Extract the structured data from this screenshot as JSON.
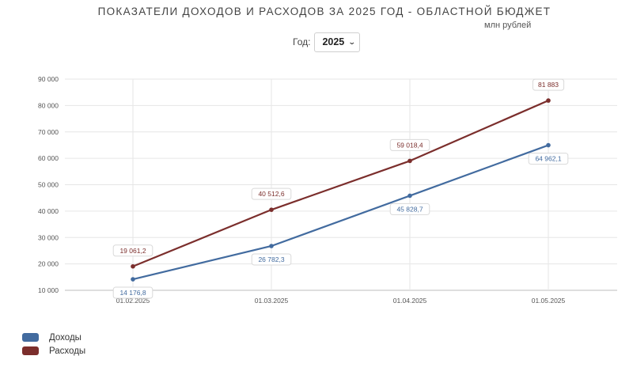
{
  "header": {
    "title": "ПОКАЗАТЕЛИ ДОХОДОВ И РАСХОДОВ ЗА 2025 ГОД - ОБЛАСТНОЙ БЮДЖЕТ",
    "unit": "млн рублей",
    "year_label": "Год:",
    "year_value": "2025"
  },
  "chart_data": {
    "type": "line",
    "title": "ПОКАЗАТЕЛИ ДОХОДОВ И РАСХОДОВ ЗА 2025 ГОД - ОБЛАСТНОЙ БЮДЖЕТ",
    "categories": [
      "01.02.2025",
      "01.03.2025",
      "01.04.2025",
      "01.05.2025"
    ],
    "ylim": [
      10000,
      90000
    ],
    "yticks": [
      10000,
      20000,
      30000,
      40000,
      50000,
      60000,
      70000,
      80000,
      90000
    ],
    "ytick_labels": [
      "10 000",
      "20 000",
      "30 000",
      "40 000",
      "50 000",
      "60 000",
      "70 000",
      "80 000",
      "90 000"
    ],
    "grid": true,
    "legend_position": "bottom-left",
    "series": [
      {
        "name": "Доходы",
        "color": "#426b9f",
        "values": [
          14176.8,
          26782.3,
          45828.7,
          64962.1
        ],
        "labels": [
          "14 176,8",
          "26 782,3",
          "45 828,7",
          "64 962,1"
        ],
        "label_position": "below"
      },
      {
        "name": "Расходы",
        "color": "#7b2e2c",
        "values": [
          19061.2,
          40512.6,
          59018.4,
          81883
        ],
        "labels": [
          "19 061,2",
          "40 512,6",
          "59 018,4",
          "81 883"
        ],
        "label_position": "above"
      }
    ]
  }
}
